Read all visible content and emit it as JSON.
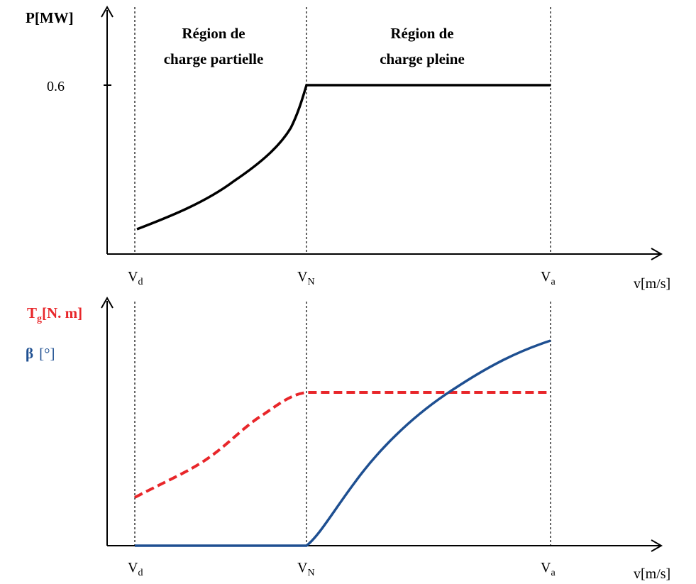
{
  "colors": {
    "axis": "#000000",
    "power_curve": "#000000",
    "torque_curve": "#e8262a",
    "pitch_curve": "#1e4f91"
  },
  "top_plot": {
    "y_label_main": "P",
    "y_label_unit": "[MW]",
    "y_tick": "0.6",
    "region_partial_line1": "Région de",
    "region_partial_line2": "charge partielle",
    "region_full_line1": "Région de",
    "region_full_line2": "charge pleine",
    "x_ticks": [
      {
        "base": "V",
        "sub": "d"
      },
      {
        "base": "V",
        "sub": "N"
      },
      {
        "base": "V",
        "sub": "a"
      }
    ],
    "x_axis_label": "v[m/s]"
  },
  "bottom_plot": {
    "torque_label_main": "T",
    "torque_label_sub": "g",
    "torque_label_unit": "[N. m]",
    "pitch_label_main": "β",
    "pitch_label_unit": "[°]",
    "x_ticks": [
      {
        "base": "V",
        "sub": "d"
      },
      {
        "base": "V",
        "sub": "N"
      },
      {
        "base": "V",
        "sub": "a"
      }
    ],
    "x_axis_label": "v[m/s]"
  }
}
